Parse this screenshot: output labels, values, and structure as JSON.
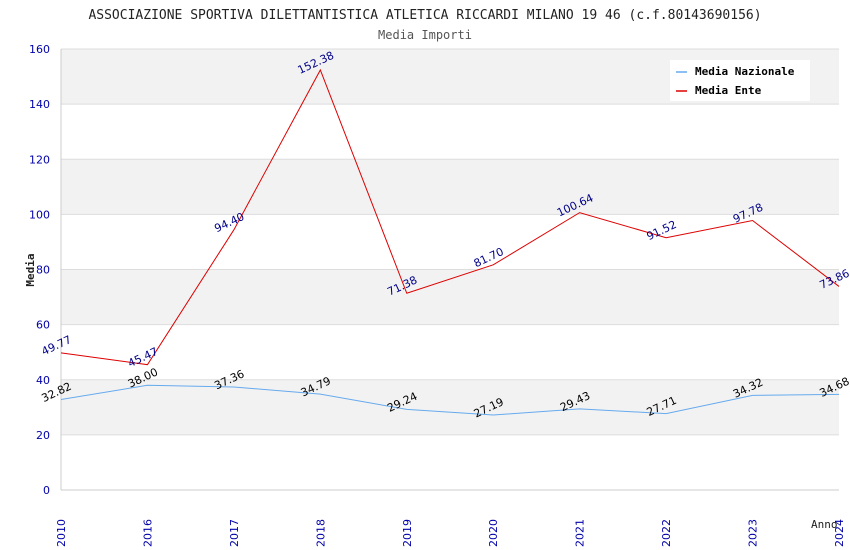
{
  "chart_data": {
    "type": "line",
    "title": "ASSOCIAZIONE SPORTIVA DILETTANTISTICA ATLETICA RICCARDI MILANO 19 46 (c.f.80143690156)",
    "subtitle": "Media Importi",
    "xlabel": "Anno",
    "ylabel": "Media",
    "categories": [
      "2010",
      "2016",
      "2017",
      "2018",
      "2019",
      "2020",
      "2021",
      "2022",
      "2023",
      "2024"
    ],
    "ylim": [
      0,
      160
    ],
    "yticks": [
      0,
      20,
      40,
      60,
      80,
      100,
      120,
      140,
      160
    ],
    "legend_position": "top-right",
    "series": [
      {
        "name": "Media Nazionale",
        "color": "#66aaee",
        "label_color": "#000000",
        "values": [
          32.82,
          38.0,
          37.36,
          34.79,
          29.24,
          27.19,
          29.43,
          27.71,
          34.32,
          34.68
        ],
        "labels": [
          "32.82",
          "38.00",
          "37.36",
          "34.79",
          "29.24",
          "27.19",
          "29.43",
          "27.71",
          "34.32",
          "34.68"
        ]
      },
      {
        "name": "Media Ente",
        "color": "#dd0000",
        "label_color": "#000088",
        "values": [
          49.77,
          45.47,
          94.4,
          152.38,
          71.38,
          81.7,
          100.64,
          91.52,
          97.78,
          73.86
        ],
        "labels": [
          "49.77",
          "45.47",
          "94.40",
          "152.38",
          "71.38",
          "81.70",
          "100.64",
          "91.52",
          "97.78",
          "73.86"
        ]
      }
    ]
  }
}
